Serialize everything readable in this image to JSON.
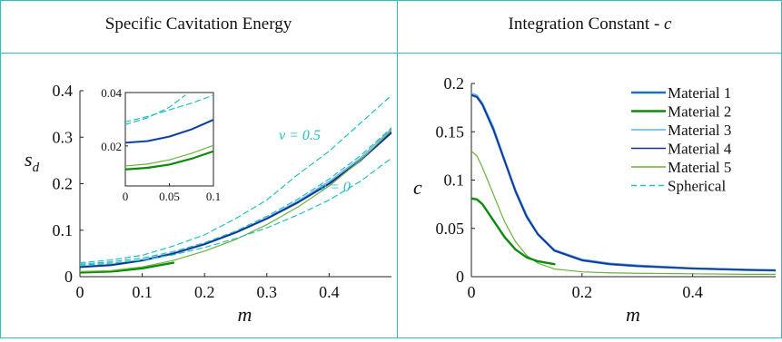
{
  "colors": {
    "material1": "#1f6fc0",
    "material2": "#0b8a0b",
    "material3": "#5ab4ef",
    "material4": "#1a2c8c",
    "material5": "#6cb23a",
    "spherical": "#22c0c0",
    "border": "#2fbfbf"
  },
  "panels": [
    {
      "title_prefix": "Specific Cavitation Energy",
      "title_suffix": ""
    },
    {
      "title_prefix": "Integration Constant - ",
      "title_suffix": "c"
    }
  ],
  "chart_data": [
    {
      "type": "line",
      "title": "Specific Cavitation Energy",
      "xlabel": "m",
      "ylabel": "s_d",
      "xlim": [
        0,
        0.5
      ],
      "ylim": [
        0,
        0.4
      ],
      "xticks": [
        "0",
        "0.1",
        "0.2",
        "0.3",
        "0.4"
      ],
      "yticks": [
        "0",
        "0.1",
        "0.2",
        "0.3",
        "0.4"
      ],
      "annotations": [
        "ν = 0.5",
        "ν = 0"
      ],
      "series": [
        {
          "key": "m1",
          "color_key": "material1",
          "dashed": false,
          "width": 2.4,
          "x": [
            0,
            0.05,
            0.1,
            0.15,
            0.2,
            0.25,
            0.3,
            0.35,
            0.4,
            0.45,
            0.5
          ],
          "y": [
            0.021,
            0.025,
            0.035,
            0.05,
            0.07,
            0.095,
            0.125,
            0.16,
            0.2,
            0.25,
            0.31
          ]
        },
        {
          "key": "m2",
          "color_key": "material2",
          "dashed": false,
          "width": 2.4,
          "x": [
            0,
            0.05,
            0.1,
            0.15
          ],
          "y": [
            0.009,
            0.011,
            0.018,
            0.03
          ]
        },
        {
          "key": "m3",
          "color_key": "material3",
          "dashed": false,
          "width": 1.2,
          "x": [
            0,
            0.05,
            0.1,
            0.15,
            0.2,
            0.25,
            0.3,
            0.35,
            0.4,
            0.45,
            0.5
          ],
          "y": [
            0.022,
            0.026,
            0.036,
            0.051,
            0.071,
            0.096,
            0.127,
            0.163,
            0.205,
            0.255,
            0.318
          ]
        },
        {
          "key": "m4",
          "color_key": "material4",
          "dashed": false,
          "width": 1.6,
          "x": [
            0,
            0.05,
            0.1,
            0.15,
            0.2,
            0.25,
            0.3,
            0.35,
            0.4,
            0.45,
            0.5
          ],
          "y": [
            0.021,
            0.025,
            0.035,
            0.05,
            0.07,
            0.095,
            0.125,
            0.16,
            0.2,
            0.25,
            0.31
          ]
        },
        {
          "key": "m5",
          "color_key": "material5",
          "dashed": false,
          "width": 1.2,
          "x": [
            0,
            0.05,
            0.1,
            0.15,
            0.2,
            0.25,
            0.3,
            0.35,
            0.4,
            0.45,
            0.5
          ],
          "y": [
            0.011,
            0.013,
            0.021,
            0.035,
            0.055,
            0.08,
            0.112,
            0.15,
            0.195,
            0.25,
            0.315
          ]
        },
        {
          "key": "sph_hi",
          "color_key": "spherical",
          "dashed": true,
          "width": 1.2,
          "x": [
            0,
            0.05,
            0.1,
            0.15,
            0.2,
            0.25,
            0.3,
            0.35,
            0.4,
            0.45,
            0.5
          ],
          "y": [
            0.03,
            0.036,
            0.046,
            0.066,
            0.09,
            0.125,
            0.165,
            0.22,
            0.27,
            0.33,
            0.39
          ]
        },
        {
          "key": "sph_mid",
          "color_key": "spherical",
          "dashed": true,
          "width": 1.2,
          "x": [
            0,
            0.05,
            0.1,
            0.15,
            0.2,
            0.25,
            0.3,
            0.35,
            0.4,
            0.45,
            0.5
          ],
          "y": [
            0.027,
            0.032,
            0.04,
            0.054,
            0.073,
            0.098,
            0.13,
            0.167,
            0.21,
            0.26,
            0.32
          ]
        },
        {
          "key": "sph_lo",
          "color_key": "spherical",
          "dashed": true,
          "width": 1.2,
          "x": [
            0,
            0.05,
            0.1,
            0.15,
            0.2,
            0.25,
            0.3,
            0.35,
            0.4,
            0.45,
            0.5
          ],
          "y": [
            0.025,
            0.029,
            0.036,
            0.047,
            0.063,
            0.082,
            0.105,
            0.133,
            0.165,
            0.205,
            0.255
          ]
        }
      ],
      "inset": {
        "xlim": [
          0,
          0.1
        ],
        "ylim": [
          0.005,
          0.04
        ],
        "xticks": [
          "0",
          "0.05",
          "0.1"
        ],
        "yticks": [
          "0.02",
          "0.04"
        ],
        "series": [
          {
            "key": "i_m1",
            "color_key": "material1",
            "width": 2.2,
            "dashed": false,
            "x": [
              0,
              0.025,
              0.05,
              0.075,
              0.1
            ],
            "y": [
              0.0212,
              0.0218,
              0.0235,
              0.0262,
              0.0298
            ]
          },
          {
            "key": "i_m4",
            "color_key": "material4",
            "width": 1.2,
            "dashed": false,
            "x": [
              0,
              0.025,
              0.05,
              0.075,
              0.1
            ],
            "y": [
              0.0212,
              0.0218,
              0.0235,
              0.0262,
              0.0298
            ]
          },
          {
            "key": "i_m5",
            "color_key": "material5",
            "width": 1.2,
            "dashed": false,
            "x": [
              0,
              0.025,
              0.05,
              0.075,
              0.1
            ],
            "y": [
              0.0125,
              0.0132,
              0.0148,
              0.0172,
              0.0202
            ]
          },
          {
            "key": "i_m2",
            "color_key": "material2",
            "width": 2.2,
            "dashed": false,
            "x": [
              0,
              0.025,
              0.05,
              0.075,
              0.1
            ],
            "y": [
              0.0112,
              0.0118,
              0.013,
              0.0152,
              0.018
            ]
          },
          {
            "key": "i_sph1",
            "color_key": "spherical",
            "width": 1.2,
            "dashed": true,
            "x": [
              0,
              0.025,
              0.05,
              0.075,
              0.1
            ],
            "y": [
              0.029,
              0.031,
              0.0335,
              0.036,
              0.039
            ]
          },
          {
            "key": "i_sph2",
            "color_key": "spherical",
            "width": 1.2,
            "dashed": true,
            "x": [
              0,
              0.025,
              0.05,
              0.068
            ],
            "y": [
              0.028,
              0.0305,
              0.0345,
              0.039
            ]
          }
        ]
      }
    },
    {
      "type": "line",
      "title": "Integration Constant - c",
      "xlabel": "m",
      "ylabel": "c",
      "xlim": [
        0,
        0.55
      ],
      "ylim": [
        0,
        0.2
      ],
      "xticks": [
        "0",
        "0.2",
        "0.4"
      ],
      "yticks": [
        "0",
        "0.05",
        "0.1",
        "0.15",
        "0.2"
      ],
      "legend_position": "top-right",
      "legend": [
        "Material 1",
        "Material 2",
        "Material 3",
        "Material 4",
        "Material 5",
        "Spherical"
      ],
      "series": [
        {
          "key": "c_m3",
          "name": "Material 3",
          "color_key": "material3",
          "width": 1.4,
          "dashed": false,
          "x": [
            0,
            0.01,
            0.02,
            0.04,
            0.06,
            0.08,
            0.1,
            0.12,
            0.15,
            0.2,
            0.25,
            0.3,
            0.4,
            0.5,
            0.55
          ],
          "y": [
            0.19,
            0.188,
            0.18,
            0.155,
            0.122,
            0.09,
            0.064,
            0.045,
            0.028,
            0.018,
            0.014,
            0.012,
            0.009,
            0.0075,
            0.007
          ]
        },
        {
          "key": "c_m1",
          "name": "Material 1",
          "color_key": "material1",
          "width": 2.4,
          "dashed": false,
          "x": [
            0,
            0.01,
            0.02,
            0.04,
            0.06,
            0.08,
            0.1,
            0.12,
            0.15,
            0.2,
            0.25,
            0.3,
            0.4,
            0.5,
            0.55
          ],
          "y": [
            0.188,
            0.186,
            0.178,
            0.152,
            0.12,
            0.088,
            0.062,
            0.044,
            0.027,
            0.017,
            0.013,
            0.011,
            0.0085,
            0.007,
            0.0065
          ]
        },
        {
          "key": "c_m4",
          "name": "Material 4",
          "color_key": "material4",
          "width": 1.2,
          "dashed": false,
          "x": [
            0,
            0.01,
            0.02,
            0.04,
            0.06,
            0.08,
            0.1,
            0.12,
            0.15,
            0.2,
            0.25,
            0.3,
            0.4,
            0.5,
            0.55
          ],
          "y": [
            0.188,
            0.186,
            0.178,
            0.152,
            0.12,
            0.088,
            0.062,
            0.044,
            0.027,
            0.017,
            0.013,
            0.011,
            0.0085,
            0.007,
            0.0065
          ]
        },
        {
          "key": "c_m5",
          "name": "Material 5",
          "color_key": "material5",
          "width": 1.2,
          "dashed": false,
          "x": [
            0,
            0.01,
            0.02,
            0.04,
            0.06,
            0.08,
            0.1,
            0.12,
            0.15,
            0.2,
            0.25,
            0.3,
            0.4,
            0.5,
            0.55
          ],
          "y": [
            0.13,
            0.125,
            0.113,
            0.085,
            0.057,
            0.036,
            0.022,
            0.014,
            0.008,
            0.005,
            0.004,
            0.0035,
            0.003,
            0.0025,
            0.0025
          ]
        },
        {
          "key": "c_m2",
          "name": "Material 2",
          "color_key": "material2",
          "width": 2.4,
          "dashed": false,
          "x": [
            0,
            0.01,
            0.02,
            0.04,
            0.06,
            0.08,
            0.1,
            0.12,
            0.15
          ],
          "y": [
            0.081,
            0.08,
            0.075,
            0.058,
            0.041,
            0.028,
            0.02,
            0.016,
            0.013
          ]
        }
      ]
    }
  ]
}
